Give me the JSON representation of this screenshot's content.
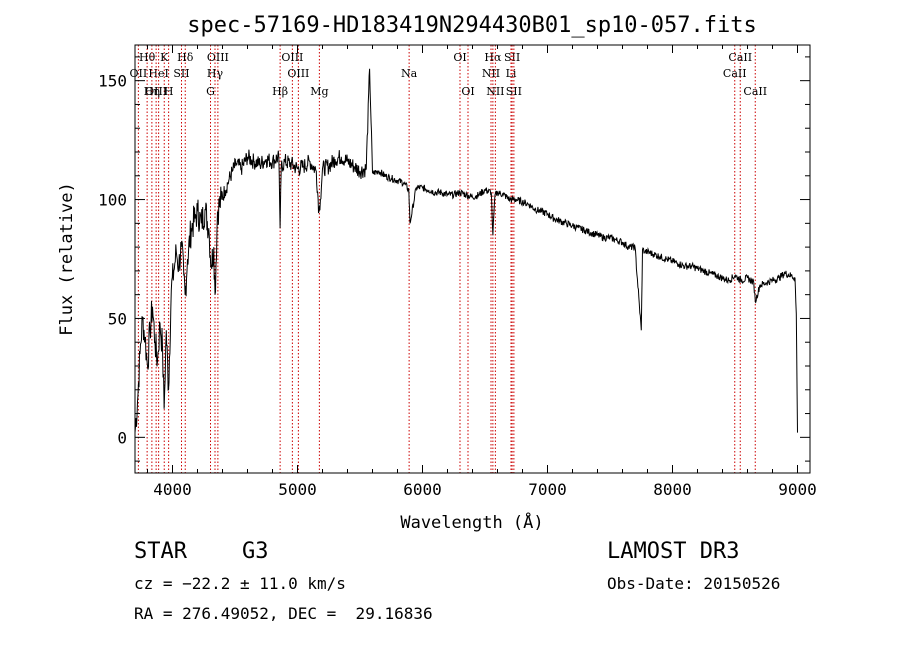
{
  "chart_data": {
    "type": "line",
    "title": "spec-57169-HD183419N294430B01_sp10-057.fits",
    "xlabel": "Wavelength (Å)",
    "ylabel": "Flux (relative)",
    "xlim": [
      3700,
      9100
    ],
    "ylim": [
      -15,
      165
    ],
    "x_ticks": [
      4000,
      5000,
      6000,
      7000,
      8000,
      9000
    ],
    "x_tick_labels": [
      "4000",
      "5000",
      "6000",
      "7000",
      "8000",
      "9000"
    ],
    "y_ticks": [
      0,
      50,
      100,
      150
    ],
    "y_tick_labels": [
      "0",
      "50",
      "100",
      "150"
    ],
    "series": [
      {
        "name": "flux",
        "x": [
          3700,
          3720,
          3740,
          3760,
          3780,
          3800,
          3820,
          3840,
          3860,
          3880,
          3900,
          3920,
          3933,
          3950,
          3968,
          3990,
          4010,
          4030,
          4050,
          4070,
          4090,
          4101,
          4120,
          4150,
          4180,
          4200,
          4230,
          4260,
          4290,
          4310,
          4330,
          4340,
          4360,
          4390,
          4420,
          4450,
          4480,
          4510,
          4550,
          4600,
          4650,
          4700,
          4750,
          4800,
          4850,
          4861,
          4870,
          4900,
          4950,
          5000,
          5050,
          5100,
          5150,
          5172,
          5183,
          5200,
          5250,
          5300,
          5350,
          5400,
          5450,
          5500,
          5550,
          5577,
          5600,
          5650,
          5700,
          5750,
          5800,
          5850,
          5890,
          5900,
          5950,
          6000,
          6050,
          6100,
          6150,
          6200,
          6250,
          6300,
          6350,
          6400,
          6450,
          6500,
          6550,
          6563,
          6580,
          6600,
          6650,
          6700,
          6750,
          6800,
          6850,
          6900,
          6950,
          7000,
          7050,
          7100,
          7150,
          7200,
          7250,
          7300,
          7350,
          7400,
          7450,
          7500,
          7550,
          7600,
          7650,
          7700,
          7750,
          7760,
          7780,
          7800,
          7850,
          7900,
          7950,
          8000,
          8050,
          8100,
          8150,
          8200,
          8250,
          8300,
          8350,
          8400,
          8450,
          8500,
          8550,
          8600,
          8650,
          8662,
          8700,
          8750,
          8800,
          8850,
          8900,
          8950,
          8980,
          8990,
          9000
        ],
        "values": [
          2,
          15,
          35,
          50,
          42,
          30,
          45,
          55,
          40,
          32,
          48,
          38,
          12,
          45,
          20,
          62,
          70,
          78,
          72,
          80,
          68,
          60,
          75,
          88,
          92,
          95,
          90,
          96,
          88,
          72,
          80,
          60,
          95,
          100,
          104,
          108,
          112,
          115,
          113,
          118,
          116,
          115,
          117,
          116,
          118,
          88,
          114,
          116,
          115,
          113,
          114,
          116,
          112,
          95,
          100,
          113,
          114,
          117,
          118,
          116,
          114,
          112,
          113,
          155,
          111,
          112,
          110,
          109,
          108,
          107,
          104,
          90,
          105,
          105,
          104,
          103,
          103,
          102,
          102,
          103,
          102,
          101,
          102,
          104,
          103,
          85,
          102,
          103,
          102,
          100,
          100,
          99,
          98,
          96,
          95,
          94,
          92,
          91,
          90,
          89,
          88,
          87,
          86,
          85,
          84,
          84,
          83,
          82,
          80,
          80,
          45,
          79,
          78,
          78,
          77,
          76,
          75,
          74,
          73,
          72,
          72,
          71,
          70,
          69,
          68,
          67,
          66,
          68,
          66,
          67,
          65,
          57,
          64,
          65,
          66,
          67,
          69,
          68,
          67,
          52,
          2
        ]
      }
    ],
    "line_markers": [
      {
        "label": "Hθ",
        "wavelength": 3797,
        "row": 1
      },
      {
        "label": "K",
        "wavelength": 3934,
        "row": 1
      },
      {
        "label": "Hδ",
        "wavelength": 4102,
        "row": 1
      },
      {
        "label": "OIII",
        "wavelength": 4363,
        "row": 1
      },
      {
        "label": "OIII",
        "wavelength": 4959,
        "row": 1
      },
      {
        "label": "OI",
        "wavelength": 6300,
        "row": 1
      },
      {
        "label": "Hα",
        "wavelength": 6563,
        "row": 1
      },
      {
        "label": "SII",
        "wavelength": 6717,
        "row": 1
      },
      {
        "label": "CaII",
        "wavelength": 8542,
        "row": 1
      },
      {
        "label": "OII",
        "wavelength": 3727,
        "row": 2
      },
      {
        "label": "HeI",
        "wavelength": 3889,
        "row": 2
      },
      {
        "label": "SII",
        "wavelength": 4072,
        "row": 2
      },
      {
        "label": "Hγ",
        "wavelength": 4340,
        "row": 2
      },
      {
        "label": "OIII",
        "wavelength": 5007,
        "row": 2
      },
      {
        "label": "Na",
        "wavelength": 5893,
        "row": 2
      },
      {
        "label": "NII",
        "wavelength": 6548,
        "row": 2
      },
      {
        "label": "Li",
        "wavelength": 6708,
        "row": 2
      },
      {
        "label": "CaII",
        "wavelength": 8498,
        "row": 2
      },
      {
        "label": "OIII",
        "wavelength": 3869,
        "row": 3
      },
      {
        "label": "Hη",
        "wavelength": 3835,
        "row": 3
      },
      {
        "label": "H",
        "wavelength": 3969,
        "row": 3
      },
      {
        "label": "G",
        "wavelength": 4304,
        "row": 3
      },
      {
        "label": "Hβ",
        "wavelength": 4861,
        "row": 3
      },
      {
        "label": "Mg",
        "wavelength": 5175,
        "row": 3
      },
      {
        "label": "OI",
        "wavelength": 6364,
        "row": 3
      },
      {
        "label": "NII",
        "wavelength": 6583,
        "row": 3
      },
      {
        "label": "SII",
        "wavelength": 6731,
        "row": 3
      },
      {
        "label": "CaII",
        "wavelength": 8662,
        "row": 3
      }
    ],
    "colors": {
      "spectrum": "#000000",
      "markers": "#cc0000",
      "axes": "#000000"
    }
  },
  "info": {
    "class_label": "STAR",
    "subclass": "G3",
    "redshift": "cz = −22.2 ± 11.0 km/s",
    "coords": "RA = 276.49052, DEC =  29.16836",
    "survey": "LAMOST DR3",
    "obs_date": "Obs-Date: 20150526"
  }
}
